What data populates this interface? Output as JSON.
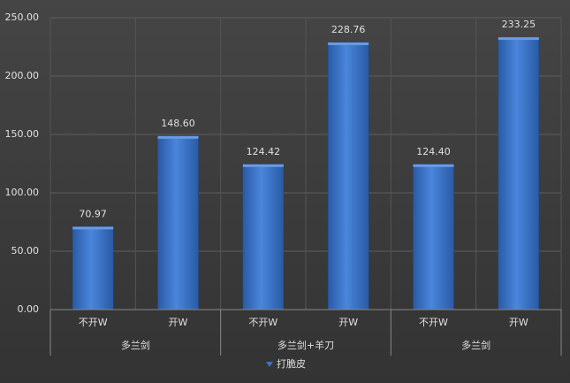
{
  "chart_data": {
    "type": "bar",
    "categories": [
      "不开W",
      "开W",
      "不开W",
      "开W",
      "不开W",
      "开W"
    ],
    "groups": [
      "多兰剑",
      "多兰剑+羊刀",
      "多兰剑"
    ],
    "series": [
      {
        "name": "打脆皮",
        "color": "#3a72c6",
        "values": [
          70.97,
          148.6,
          124.42,
          228.76,
          124.4,
          233.25
        ],
        "value_labels": [
          "70.97",
          "148.60",
          "124.42",
          "228.76",
          "124.40",
          "233.25"
        ]
      }
    ],
    "ylim": [
      0,
      250
    ],
    "yticks": [
      {
        "value": 0,
        "label": "0.00"
      },
      {
        "value": 50,
        "label": "50.00"
      },
      {
        "value": 100,
        "label": "100.00"
      },
      {
        "value": 150,
        "label": "150.00"
      },
      {
        "value": 200,
        "label": "200.00"
      },
      {
        "value": 250,
        "label": "250.00"
      }
    ],
    "grid": true,
    "legend": "bottom"
  }
}
